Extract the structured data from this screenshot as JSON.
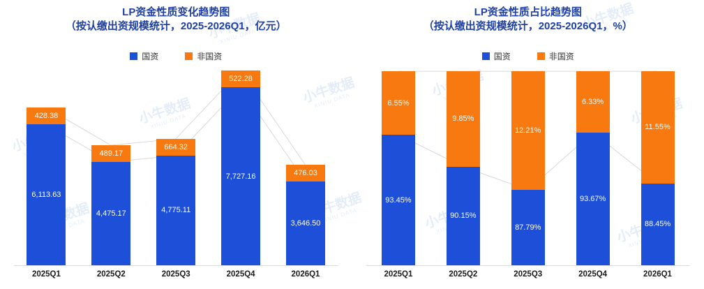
{
  "watermark": {
    "cn": "小牛数据",
    "en": "XINIU DATA"
  },
  "charts": [
    {
      "title_line1": "LP资金性质变化趋势图",
      "title_line2": "（按认缴出资规模统计，2025-2026Q1，亿元）",
      "legend": [
        {
          "label": "国资",
          "color": "#1e4fd8"
        },
        {
          "label": "非国资",
          "color": "#f8790f"
        }
      ]
    },
    {
      "title_line1": "LP资金性质占比趋势图",
      "title_line2": "（按认缴出资规模统计，2025-2026Q1，%）",
      "legend": [
        {
          "label": "国资",
          "color": "#1e4fd8"
        },
        {
          "label": "非国资",
          "color": "#f8790f"
        }
      ]
    }
  ],
  "chart_data": [
    {
      "type": "bar",
      "stacking": "stacked",
      "title": "LP资金性质变化趋势图",
      "subtitle": "按认缴出资规模统计，2025-2026Q1，亿元",
      "unit": "亿元",
      "legend_position": "top",
      "categories": [
        "2025Q1",
        "2025Q2",
        "2025Q3",
        "2025Q4",
        "2026Q1"
      ],
      "series": [
        {
          "name": "国资",
          "color": "#1e4fd8",
          "values": [
            6113.63,
            4475.17,
            4775.11,
            7727.16,
            3646.5
          ],
          "labels": [
            "6,113.63",
            "4,475.17",
            "4,775.11",
            "7,727.16",
            "3,646.50"
          ]
        },
        {
          "name": "非国资",
          "color": "#f8790f",
          "values": [
            428.38,
            489.17,
            664.32,
            522.28,
            476.03
          ],
          "labels": [
            "428.38",
            "489.17",
            "664.32",
            "522.28",
            "476.03"
          ]
        }
      ]
    },
    {
      "type": "bar",
      "stacking": "percent",
      "title": "LP资金性质占比趋势图",
      "subtitle": "按认缴出资规模统计，2025-2026Q1，%",
      "unit": "%",
      "legend_position": "top",
      "categories": [
        "2025Q1",
        "2025Q2",
        "2025Q3",
        "2025Q4",
        "2026Q1"
      ],
      "series": [
        {
          "name": "国资",
          "color": "#1e4fd8",
          "values": [
            93.45,
            90.15,
            87.79,
            93.67,
            88.45
          ],
          "labels": [
            "93.45%",
            "90.15%",
            "87.79%",
            "93.67%",
            "88.45%"
          ]
        },
        {
          "name": "非国资",
          "color": "#f8790f",
          "values": [
            6.55,
            9.85,
            12.21,
            6.33,
            11.55
          ],
          "labels": [
            "6.55%",
            "9.85%",
            "12.21%",
            "6.33%",
            "11.55%"
          ]
        }
      ]
    }
  ]
}
